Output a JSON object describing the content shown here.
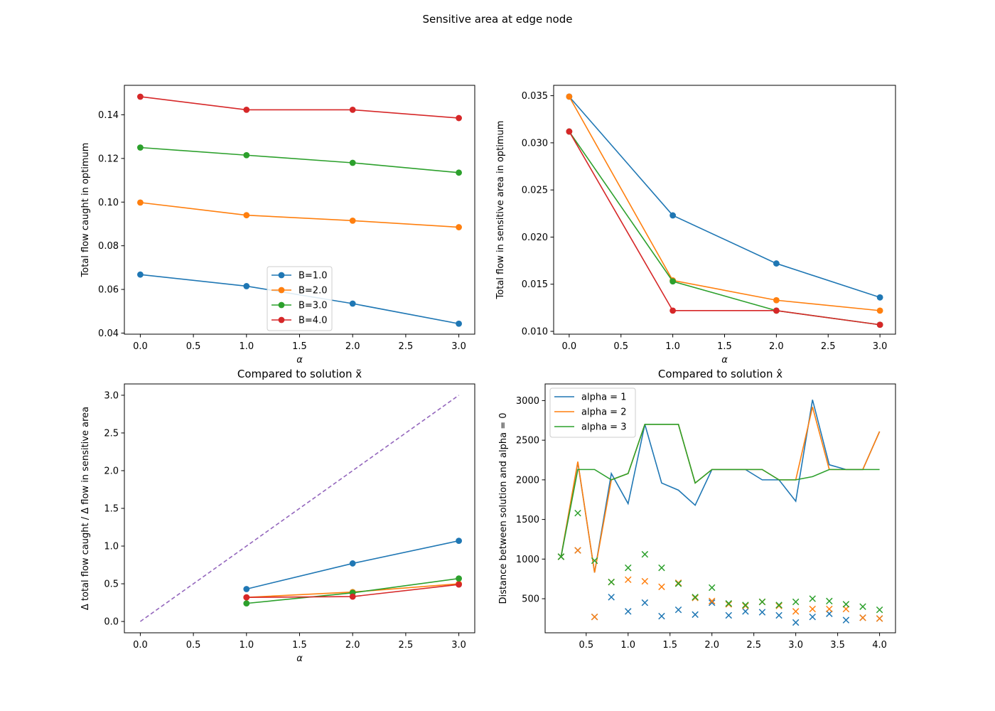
{
  "figure_title": "Sensitive area at edge node",
  "colors": {
    "blue": "#1f77b4",
    "orange": "#ff7f0e",
    "green": "#2ca02c",
    "red": "#d62728",
    "purple": "#9467bd"
  },
  "chart_data": [
    {
      "type": "line",
      "title": "",
      "xlabel": "α",
      "ylabel": "Total flow caught in optimum",
      "xlim": [
        -0.15,
        3.15
      ],
      "ylim": [
        0.0395,
        0.1535
      ],
      "xticks": [
        0.0,
        0.5,
        1.0,
        1.5,
        2.0,
        2.5,
        3.0
      ],
      "xtick_labels": [
        "0.0",
        "0.5",
        "1.0",
        "1.5",
        "2.0",
        "2.5",
        "3.0"
      ],
      "yticks": [
        0.04,
        0.06,
        0.08,
        0.1,
        0.12,
        0.14
      ],
      "ytick_labels": [
        "0.04",
        "0.06",
        "0.08",
        "0.10",
        "0.12",
        "0.14"
      ],
      "legend": "lower-center",
      "series": [
        {
          "name": "B=1.0",
          "color": "blue",
          "marker": "o",
          "x": [
            0,
            1,
            2,
            3
          ],
          "y": [
            0.0668,
            0.0615,
            0.0535,
            0.0443
          ]
        },
        {
          "name": "B=2.0",
          "color": "orange",
          "marker": "o",
          "x": [
            0,
            1,
            2,
            3
          ],
          "y": [
            0.0998,
            0.094,
            0.0915,
            0.0885
          ]
        },
        {
          "name": "B=3.0",
          "color": "green",
          "marker": "o",
          "x": [
            0,
            1,
            2,
            3
          ],
          "y": [
            0.125,
            0.1215,
            0.118,
            0.1135
          ]
        },
        {
          "name": "B=4.0",
          "color": "red",
          "marker": "o",
          "x": [
            0,
            1,
            2,
            3
          ],
          "y": [
            0.1483,
            0.1423,
            0.1423,
            0.1385
          ]
        }
      ]
    },
    {
      "type": "line",
      "title": "",
      "xlabel": "α",
      "ylabel": "Total flow in sensitive area in optimum",
      "xlim": [
        -0.15,
        3.15
      ],
      "ylim": [
        0.0097,
        0.0361
      ],
      "xticks": [
        0.0,
        0.5,
        1.0,
        1.5,
        2.0,
        2.5,
        3.0
      ],
      "xtick_labels": [
        "0.0",
        "0.5",
        "1.0",
        "1.5",
        "2.0",
        "2.5",
        "3.0"
      ],
      "yticks": [
        0.01,
        0.015,
        0.02,
        0.025,
        0.03,
        0.035
      ],
      "ytick_labels": [
        "0.010",
        "0.015",
        "0.020",
        "0.025",
        "0.030",
        "0.035"
      ],
      "series": [
        {
          "color": "blue",
          "marker": "o",
          "x": [
            0,
            1,
            2,
            3
          ],
          "y": [
            0.0349,
            0.0223,
            0.0172,
            0.0136
          ]
        },
        {
          "color": "orange",
          "marker": "o",
          "x": [
            0,
            1,
            2,
            3
          ],
          "y": [
            0.0349,
            0.0154,
            0.0133,
            0.0122
          ]
        },
        {
          "color": "green",
          "marker": "o",
          "x": [
            0,
            1,
            2,
            3
          ],
          "y": [
            0.0312,
            0.0153,
            0.0122,
            0.0107
          ]
        },
        {
          "color": "red",
          "marker": "o",
          "x": [
            0,
            1,
            2,
            3
          ],
          "y": [
            0.0312,
            0.0122,
            0.0122,
            0.0107
          ]
        }
      ]
    },
    {
      "type": "line",
      "title": "Compared to solution x̃",
      "xlabel": "α",
      "ylabel": "Δ total flow caught / Δ flow in sensitive area",
      "xlim": [
        -0.15,
        3.15
      ],
      "ylim": [
        -0.15,
        3.15
      ],
      "xticks": [
        0.0,
        0.5,
        1.0,
        1.5,
        2.0,
        2.5,
        3.0
      ],
      "xtick_labels": [
        "0.0",
        "0.5",
        "1.0",
        "1.5",
        "2.0",
        "2.5",
        "3.0"
      ],
      "yticks": [
        0.0,
        0.5,
        1.0,
        1.5,
        2.0,
        2.5,
        3.0
      ],
      "ytick_labels": [
        "0.0",
        "0.5",
        "1.0",
        "1.5",
        "2.0",
        "2.5",
        "3.0"
      ],
      "series": [
        {
          "color": "purple",
          "dashed": true,
          "x": [
            0,
            3
          ],
          "y": [
            0,
            3
          ]
        },
        {
          "color": "blue",
          "marker": "o",
          "x": [
            1,
            2,
            3
          ],
          "y": [
            0.43,
            0.77,
            1.07
          ]
        },
        {
          "color": "orange",
          "marker": "o",
          "x": [
            1,
            2,
            3
          ],
          "y": [
            0.32,
            0.39,
            0.5
          ]
        },
        {
          "color": "green",
          "marker": "o",
          "x": [
            1,
            2,
            3
          ],
          "y": [
            0.24,
            0.38,
            0.57
          ]
        },
        {
          "color": "red",
          "marker": "o",
          "x": [
            1,
            2,
            3
          ],
          "y": [
            0.32,
            0.33,
            0.49
          ]
        }
      ]
    },
    {
      "type": "line",
      "title": "Compared to solution x̂",
      "xlabel": "",
      "ylabel": "Distance between solution and alpha = 0",
      "xlim": [
        0.01,
        4.19
      ],
      "ylim": [
        70,
        3210
      ],
      "xticks": [
        0.5,
        1.0,
        1.5,
        2.0,
        2.5,
        3.0,
        3.5,
        4.0
      ],
      "xtick_labels": [
        "0.5",
        "1.0",
        "1.5",
        "2.0",
        "2.5",
        "3.0",
        "3.5",
        "4.0"
      ],
      "yticks": [
        500,
        1000,
        1500,
        2000,
        2500,
        3000
      ],
      "ytick_labels": [
        "500",
        "1000",
        "1500",
        "2000",
        "2500",
        "3000"
      ],
      "legend": "upper-left",
      "x": [
        0.2,
        0.4,
        0.6,
        0.8,
        1.0,
        1.2,
        1.4,
        1.6,
        1.8,
        2.0,
        2.2,
        2.4,
        2.6,
        2.8,
        3.0,
        3.2,
        3.4,
        3.6,
        3.8,
        4.0
      ],
      "series": [
        {
          "name": "alpha = 1",
          "color": "blue",
          "y": [
            1030,
            2220,
            830,
            2080,
            1700,
            2700,
            1960,
            1870,
            1680,
            2130,
            2130,
            2130,
            2000,
            2000,
            1730,
            3010,
            2190,
            2130,
            2130,
            2610
          ]
        },
        {
          "name": "alpha = 2",
          "color": "orange",
          "y": [
            1030,
            2230,
            830,
            2000,
            2080,
            2700,
            2700,
            2700,
            1960,
            2130,
            2130,
            2130,
            2130,
            2000,
            2000,
            2920,
            2130,
            2130,
            2130,
            2610
          ]
        },
        {
          "name": "alpha = 3",
          "color": "green",
          "y": [
            1030,
            2130,
            2130,
            2000,
            2080,
            2700,
            2700,
            2700,
            1960,
            2130,
            2130,
            2130,
            2130,
            2000,
            2000,
            2040,
            2130,
            2130,
            2130,
            2130
          ]
        }
      ],
      "scatter": [
        {
          "color": "blue",
          "marker": "x",
          "x": [
            0.2,
            0.4,
            0.6,
            0.8,
            1.0,
            1.2,
            1.4,
            1.6,
            1.8,
            2.0,
            2.2,
            2.4,
            2.6,
            2.8,
            3.0,
            3.2,
            3.4,
            3.6,
            3.8,
            4.0
          ],
          "y": [
            1030,
            1110,
            270,
            520,
            340,
            450,
            280,
            360,
            300,
            450,
            290,
            340,
            330,
            290,
            200,
            270,
            310,
            230,
            260,
            250
          ]
        },
        {
          "color": "orange",
          "marker": "x",
          "x": [
            0.2,
            0.4,
            0.6,
            0.8,
            1.0,
            1.2,
            1.4,
            1.6,
            1.8,
            2.0,
            2.2,
            2.4,
            2.6,
            2.8,
            3.0,
            3.2,
            3.4,
            3.6,
            3.8,
            4.0
          ],
          "y": [
            1030,
            1110,
            270,
            710,
            740,
            720,
            650,
            700,
            510,
            470,
            430,
            410,
            460,
            410,
            340,
            370,
            370,
            370,
            260,
            250
          ]
        },
        {
          "color": "green",
          "marker": "x",
          "x": [
            0.2,
            0.4,
            0.6,
            0.8,
            1.0,
            1.2,
            1.4,
            1.6,
            1.8,
            2.0,
            2.2,
            2.4,
            2.6,
            2.8,
            3.0,
            3.2,
            3.4,
            3.6,
            3.8,
            4.0
          ],
          "y": [
            1030,
            1580,
            980,
            710,
            890,
            1060,
            890,
            690,
            520,
            640,
            440,
            420,
            460,
            420,
            460,
            500,
            470,
            430,
            400,
            360
          ]
        }
      ]
    }
  ]
}
